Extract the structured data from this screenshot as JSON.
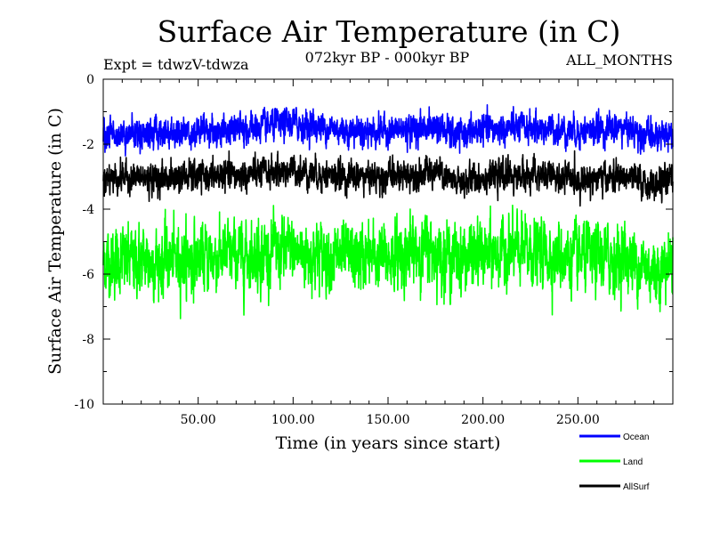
{
  "chart_data": {
    "type": "line",
    "title": "Surface Air Temperature (in C)",
    "subtitle": "072kyr BP - 000kyr BP",
    "experiment": "Expt = tdwzV-tdwza",
    "months_label": "ALL_MONTHS",
    "xlabel": "Time (in years since start)",
    "ylabel": "Surface Air Temperature (in C)",
    "xlim": [
      0,
      300
    ],
    "ylim": [
      -10,
      0
    ],
    "x_ticks": [
      50,
      100,
      150,
      200,
      250
    ],
    "x_tick_labels": [
      "50.00",
      "100.00",
      "150.00",
      "200.00",
      "250.00"
    ],
    "y_ticks": [
      0,
      -2,
      -4,
      -6,
      -8,
      -10
    ],
    "y_tick_labels": [
      "0",
      "-2",
      "-4",
      "-6",
      "-8",
      "-10"
    ],
    "legend_position": "bottom-right",
    "series": [
      {
        "name": "Ocean",
        "color": "#0000ff",
        "mean": -1.6,
        "noise_amplitude": 0.3,
        "samples_per_year": 12,
        "anchors": [
          [
            0,
            -1.7
          ],
          [
            25,
            -1.65
          ],
          [
            50,
            -1.6
          ],
          [
            75,
            -1.55
          ],
          [
            100,
            -1.35
          ],
          [
            125,
            -1.55
          ],
          [
            150,
            -1.6
          ],
          [
            175,
            -1.45
          ],
          [
            185,
            -1.75
          ],
          [
            200,
            -1.55
          ],
          [
            225,
            -1.5
          ],
          [
            250,
            -1.6
          ],
          [
            275,
            -1.5
          ],
          [
            290,
            -1.8
          ],
          [
            300,
            -1.6
          ]
        ]
      },
      {
        "name": "Land",
        "color": "#00ff00",
        "mean": -5.5,
        "noise_amplitude": 0.65,
        "samples_per_year": 12,
        "anchors": [
          [
            0,
            -5.6
          ],
          [
            25,
            -5.6
          ],
          [
            50,
            -5.5
          ],
          [
            75,
            -5.4
          ],
          [
            100,
            -5.3
          ],
          [
            125,
            -5.5
          ],
          [
            150,
            -5.5
          ],
          [
            170,
            -5.2
          ],
          [
            185,
            -5.5
          ],
          [
            200,
            -5.4
          ],
          [
            225,
            -5.3
          ],
          [
            250,
            -5.5
          ],
          [
            275,
            -5.5
          ],
          [
            290,
            -5.9
          ],
          [
            300,
            -5.6
          ]
        ]
      },
      {
        "name": "AllSurf",
        "color": "#000000",
        "mean": -3.0,
        "noise_amplitude": 0.3,
        "samples_per_year": 12,
        "anchors": [
          [
            0,
            -3.0
          ],
          [
            25,
            -3.05
          ],
          [
            50,
            -3.0
          ],
          [
            75,
            -2.95
          ],
          [
            100,
            -2.8
          ],
          [
            125,
            -3.0
          ],
          [
            150,
            -3.0
          ],
          [
            175,
            -2.85
          ],
          [
            185,
            -3.2
          ],
          [
            200,
            -3.0
          ],
          [
            225,
            -2.95
          ],
          [
            250,
            -3.1
          ],
          [
            275,
            -3.0
          ],
          [
            290,
            -3.3
          ],
          [
            300,
            -3.05
          ]
        ]
      }
    ]
  }
}
